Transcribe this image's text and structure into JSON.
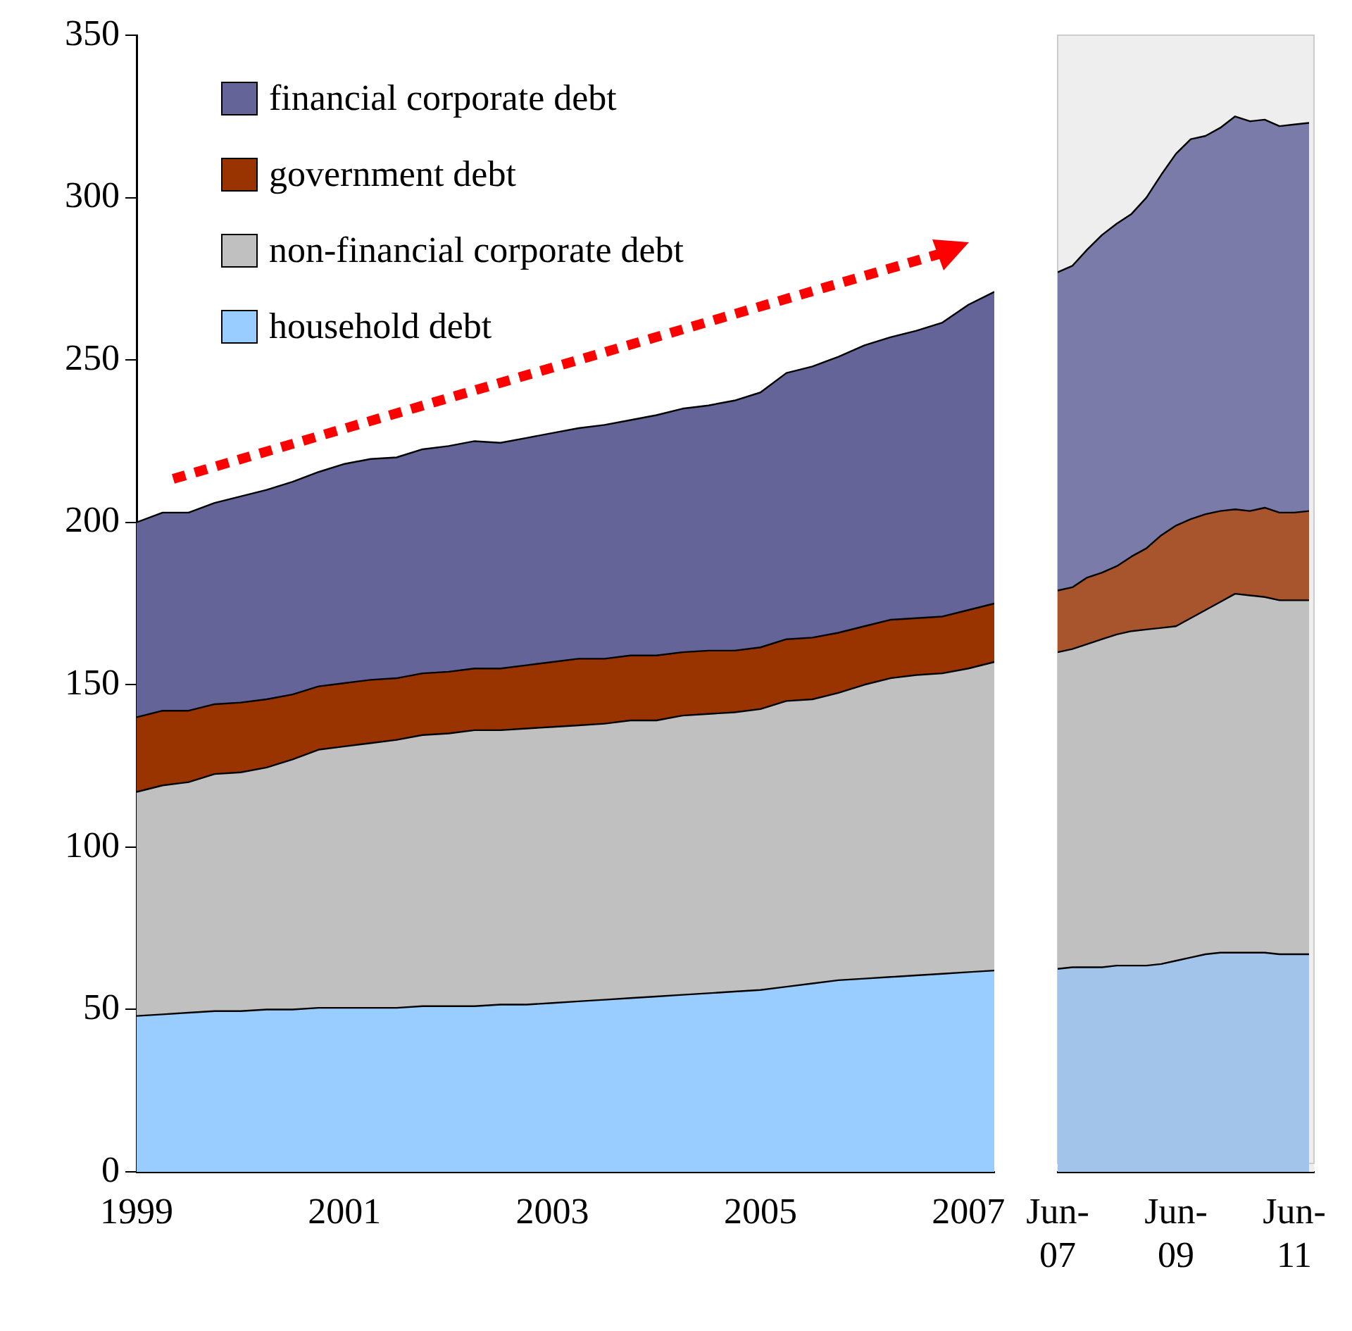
{
  "chart_data": [
    {
      "type": "area",
      "stacked": true,
      "legend": "top left",
      "marker": "none",
      "grid": false,
      "x": [
        1999,
        1999.25,
        1999.5,
        1999.75,
        2000,
        2000.25,
        2000.5,
        2000.75,
        2001,
        2001.25,
        2001.5,
        2001.75,
        2002,
        2002.25,
        2002.5,
        2002.75,
        2003,
        2003.25,
        2003.5,
        2003.75,
        2004,
        2004.25,
        2004.5,
        2004.75,
        2005,
        2005.25,
        2005.5,
        2005.75,
        2006,
        2006.25,
        2006.5,
        2006.75,
        2007,
        2007.25
      ],
      "xlim": [
        1999,
        2007.25
      ],
      "xticks": [
        1999,
        2001,
        2003,
        2005,
        2007
      ],
      "ylim": [
        0,
        350
      ],
      "yticks": [
        0,
        50,
        100,
        150,
        200,
        250,
        300,
        350
      ],
      "series": [
        {
          "name": "household debt",
          "color": "#99ccff",
          "values": [
            48,
            48.5,
            49,
            49.5,
            49.5,
            50,
            50,
            50.5,
            50.5,
            50.5,
            50.5,
            51,
            51,
            51,
            51.5,
            51.5,
            52,
            52.5,
            53,
            53.5,
            54,
            54.5,
            55,
            55.5,
            56,
            57,
            58,
            59,
            59.5,
            60,
            60.5,
            61,
            61.5,
            62
          ]
        },
        {
          "name": "non-financial corporate debt",
          "color": "#c0c0c0",
          "values": [
            69,
            70.5,
            71,
            73,
            73.5,
            74.5,
            77,
            79.5,
            80.5,
            81.5,
            82.5,
            83.5,
            84,
            85,
            84.5,
            85,
            85,
            85,
            85,
            85.5,
            85,
            86,
            86,
            86,
            86.5,
            88,
            87.5,
            88.5,
            90.5,
            92,
            92.5,
            92.5,
            93.5,
            95
          ]
        },
        {
          "name": "government debt",
          "color": "#993300",
          "values": [
            23,
            23,
            22,
            21.5,
            21.5,
            21,
            20,
            19.5,
            19.5,
            19.5,
            19,
            19,
            19,
            19,
            19,
            19.5,
            20,
            20.5,
            20,
            20,
            20,
            19.5,
            19.5,
            19,
            19,
            19,
            19,
            18.5,
            18,
            18,
            17.5,
            17.5,
            18,
            18
          ]
        },
        {
          "name": "financial corporate debt",
          "color": "#646499",
          "values": [
            60,
            61,
            61,
            62,
            63.5,
            64.5,
            65.5,
            66,
            67.5,
            68,
            68,
            69,
            69.5,
            70,
            69.5,
            70,
            70.5,
            71,
            72,
            72.5,
            74,
            75,
            75.5,
            77,
            78.5,
            82,
            83.5,
            85,
            86.5,
            87,
            88.5,
            90.5,
            94,
            96
          ]
        }
      ]
    },
    {
      "type": "area",
      "stacked": true,
      "legend": false,
      "marker": "none",
      "grid": false,
      "tick_labels": "x",
      "x": [
        "2007-06",
        "2007-09",
        "2007-12",
        "2008-03",
        "2008-06",
        "2008-09",
        "2008-12",
        "2009-03",
        "2009-06",
        "2009-09",
        "2009-12",
        "2010-03",
        "2010-06",
        "2010-09",
        "2010-12",
        "2011-03",
        "2011-06",
        "2011-09"
      ],
      "xlim": [
        "2007-06",
        "2011-10"
      ],
      "xticks": [
        {
          "value": "2007-06",
          "label": "Jun-07"
        },
        {
          "value": "2009-06",
          "label": "Jun-09"
        },
        {
          "value": "2011-06",
          "label": "Jun-11"
        }
      ],
      "ylim": [
        0,
        350
      ],
      "bands": [
        {
          "axis": "x",
          "from": "2007-06",
          "to": "2011-10",
          "color": "#eeeeee"
        }
      ],
      "series": [
        {
          "color": "#a3c4ea",
          "values": [
            62.5,
            63,
            63,
            63,
            63.5,
            63.5,
            63.5,
            64,
            65,
            66,
            67,
            67.5,
            67.5,
            67.5,
            67.5,
            67,
            67,
            67
          ]
        },
        {
          "color": "#c0c0c0",
          "values": [
            97.5,
            98,
            99.5,
            101,
            102,
            103,
            103.5,
            103.5,
            103,
            104.5,
            106,
            108,
            110.5,
            110,
            109.5,
            109,
            109,
            109
          ]
        },
        {
          "color": "#a8552e",
          "values": [
            19,
            19,
            20.5,
            20.5,
            21,
            23,
            25,
            28.5,
            31,
            30.5,
            29.5,
            28,
            26,
            26,
            27.5,
            27,
            27,
            27.5
          ]
        },
        {
          "color": "#7b7baa",
          "values": [
            98,
            99,
            101,
            104,
            105.5,
            105.5,
            108,
            111,
            114.5,
            117,
            116.5,
            118,
            121,
            120,
            119.5,
            119,
            119.5,
            119.5
          ]
        }
      ]
    }
  ]
}
